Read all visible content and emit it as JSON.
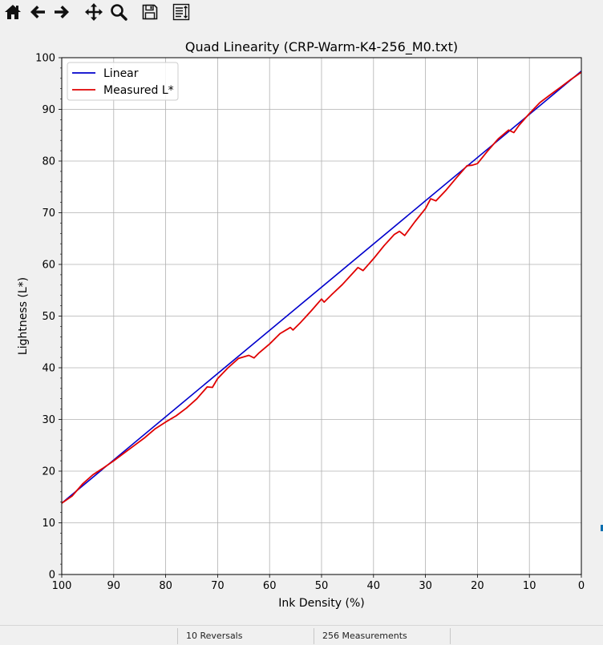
{
  "toolbar": {
    "buttons": [
      {
        "name": "home-button",
        "icon": "home-icon"
      },
      {
        "name": "back-button",
        "icon": "arrow-left-icon"
      },
      {
        "name": "forward-button",
        "icon": "arrow-right-icon"
      },
      {
        "name": "pan-button",
        "icon": "move-icon"
      },
      {
        "name": "zoom-button",
        "icon": "magnifier-icon"
      },
      {
        "name": "save-button",
        "icon": "floppy-disk-icon"
      },
      {
        "name": "configure-subplots-button",
        "icon": "subplots-icon"
      }
    ]
  },
  "status": {
    "reversals": "10 Reversals",
    "measurements": "256 Measurements"
  },
  "chart_data": {
    "type": "line",
    "title": "Quad Linearity  (CRP-Warm-K4-256_M0.txt)",
    "xlabel": "Ink Density (%)",
    "ylabel": "Lightness (L*)",
    "xlim": [
      100,
      0
    ],
    "ylim": [
      0,
      100
    ],
    "x_ticks": [
      "100",
      "90",
      "80",
      "70",
      "60",
      "50",
      "40",
      "30",
      "20",
      "10",
      "0"
    ],
    "y_ticks": [
      "0",
      "10",
      "20",
      "30",
      "40",
      "50",
      "60",
      "70",
      "80",
      "90",
      "100"
    ],
    "grid": true,
    "legend_position": "upper-left",
    "colors": {
      "linear": "#0000cc",
      "measured": "#e00000"
    },
    "series": [
      {
        "name": "Linear",
        "x": [
          100,
          0
        ],
        "y": [
          13.8,
          97.4
        ]
      },
      {
        "name": "Measured L*",
        "x": [
          100,
          98,
          96,
          94,
          92,
          90,
          88,
          86,
          84,
          82,
          80,
          78,
          76,
          74,
          72,
          71,
          70,
          68,
          66,
          64,
          63,
          62,
          60,
          58,
          56,
          55.5,
          54,
          52,
          50,
          49.5,
          48,
          46,
          44,
          43,
          42,
          40,
          38,
          36,
          35,
          34,
          32,
          30,
          29,
          28,
          26,
          24,
          22,
          21,
          20,
          18,
          16,
          14,
          13,
          12,
          10,
          8,
          6,
          4,
          2,
          0
        ],
        "y": [
          13.8,
          15.2,
          17.5,
          19.3,
          20.6,
          22.0,
          23.5,
          25.0,
          26.5,
          28.2,
          29.5,
          30.7,
          32.2,
          34.0,
          36.3,
          36.2,
          37.9,
          40.0,
          41.8,
          42.4,
          41.9,
          42.9,
          44.6,
          46.6,
          47.8,
          47.3,
          48.8,
          51.0,
          53.3,
          52.7,
          54.2,
          56.1,
          58.3,
          59.4,
          58.8,
          61.1,
          63.6,
          65.8,
          66.4,
          65.6,
          68.3,
          70.8,
          72.7,
          72.3,
          74.4,
          76.8,
          79.1,
          79.2,
          79.5,
          82.0,
          84.3,
          86.0,
          85.5,
          86.9,
          89.2,
          91.3,
          92.8,
          94.3,
          95.8,
          97.2
        ]
      }
    ]
  }
}
